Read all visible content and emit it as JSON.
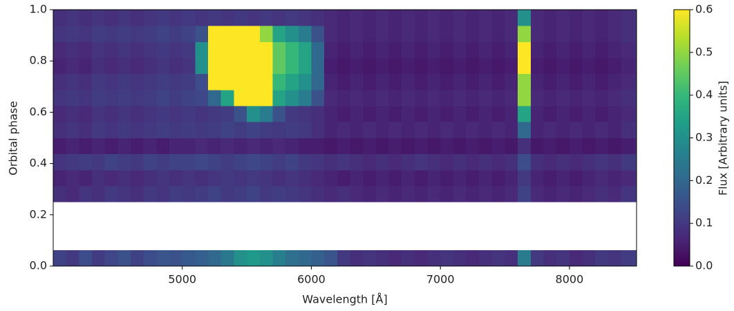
{
  "chart_data": {
    "type": "heatmap",
    "xlabel": "Wavelength [Å]",
    "ylabel": "Orbital phase",
    "colorbar_label": "Flux [Arbitrary units]",
    "xlim": [
      4000,
      8520
    ],
    "ylim": [
      0,
      1
    ],
    "xticks": [
      5000,
      6000,
      7000,
      8000
    ],
    "yticks": [
      {
        "value": 0,
        "label": "0.0"
      },
      {
        "value": 0.2,
        "label": "0.2"
      },
      {
        "value": 0.4,
        "label": "0.4"
      },
      {
        "value": 0.6,
        "label": "0.6"
      },
      {
        "value": 0.8,
        "label": "0.8"
      },
      {
        "value": 1,
        "label": "1.0"
      }
    ],
    "clim": [
      0,
      0.6
    ],
    "cticks": [
      {
        "value": 0,
        "label": "0.0"
      },
      {
        "value": 0.1,
        "label": "0.1"
      },
      {
        "value": 0.2,
        "label": "0.2"
      },
      {
        "value": 0.3,
        "label": "0.3"
      },
      {
        "value": 0.4,
        "label": "0.4"
      },
      {
        "value": 0.5,
        "label": "0.5"
      },
      {
        "value": 0.6,
        "label": "0.6"
      }
    ],
    "colormap": [
      "#440154",
      "#482878",
      "#3e4989",
      "#31688e",
      "#26828e",
      "#1f9e89",
      "#35b779",
      "#6ece58",
      "#b5de2b",
      "#fde725"
    ],
    "x_edges": [
      4000,
      4100,
      4200,
      4300,
      4400,
      4500,
      4600,
      4700,
      4800,
      4900,
      5000,
      5100,
      5200,
      5300,
      5400,
      5500,
      5600,
      5700,
      5800,
      5900,
      6000,
      6100,
      6200,
      6300,
      6400,
      6500,
      6600,
      6700,
      6800,
      6900,
      7000,
      7100,
      7200,
      7300,
      7400,
      7500,
      7600,
      7700,
      7800,
      7900,
      8000,
      8100,
      8200,
      8300,
      8400,
      8500,
      8520
    ],
    "rows": [
      {
        "phase": [
          0,
          0.0625
        ],
        "values": [
          0.12,
          0.1,
          0.14,
          0.11,
          0.13,
          0.15,
          0.12,
          0.14,
          0.16,
          0.15,
          0.17,
          0.18,
          0.2,
          0.24,
          0.3,
          0.32,
          0.3,
          0.26,
          0.22,
          0.2,
          0.18,
          0.16,
          0.1,
          0.08,
          0.09,
          0.08,
          0.07,
          0.08,
          0.07,
          0.08,
          0.09,
          0.08,
          0.07,
          0.08,
          0.09,
          0.08,
          0.25,
          0.1,
          0.08,
          0.09,
          0.07,
          0.08,
          0.1,
          0.09,
          0.11,
          0.12
        ]
      },
      {
        "phase": [
          0.25,
          0.3125
        ],
        "values": [
          0.08,
          0.07,
          0.09,
          0.08,
          0.1,
          0.09,
          0.08,
          0.1,
          0.09,
          0.11,
          0.1,
          0.11,
          0.12,
          0.1,
          0.11,
          0.12,
          0.1,
          0.11,
          0.1,
          0.09,
          0.08,
          0.07,
          0.08,
          0.07,
          0.06,
          0.07,
          0.06,
          0.07,
          0.06,
          0.07,
          0.06,
          0.07,
          0.06,
          0.07,
          0.06,
          0.07,
          0.12,
          0.07,
          0.06,
          0.07,
          0.06,
          0.07,
          0.08,
          0.07,
          0.09,
          0.1
        ]
      },
      {
        "phase": [
          0.3125,
          0.375
        ],
        "values": [
          0.06,
          0.07,
          0.06,
          0.08,
          0.07,
          0.08,
          0.07,
          0.08,
          0.09,
          0.08,
          0.09,
          0.08,
          0.09,
          0.1,
          0.09,
          0.1,
          0.09,
          0.08,
          0.09,
          0.08,
          0.07,
          0.06,
          0.05,
          0.06,
          0.05,
          0.06,
          0.05,
          0.06,
          0.05,
          0.06,
          0.05,
          0.06,
          0.05,
          0.06,
          0.05,
          0.06,
          0.1,
          0.06,
          0.05,
          0.06,
          0.05,
          0.06,
          0.07,
          0.06,
          0.07,
          0.08
        ]
      },
      {
        "phase": [
          0.375,
          0.4375
        ],
        "values": [
          0.09,
          0.1,
          0.11,
          0.1,
          0.12,
          0.11,
          0.1,
          0.12,
          0.11,
          0.12,
          0.12,
          0.13,
          0.12,
          0.11,
          0.12,
          0.13,
          0.12,
          0.11,
          0.12,
          0.1,
          0.09,
          0.08,
          0.09,
          0.08,
          0.07,
          0.08,
          0.07,
          0.08,
          0.09,
          0.08,
          0.07,
          0.08,
          0.07,
          0.08,
          0.07,
          0.08,
          0.14,
          0.08,
          0.07,
          0.08,
          0.07,
          0.08,
          0.09,
          0.08,
          0.1,
          0.11
        ]
      },
      {
        "phase": [
          0.4375,
          0.5
        ],
        "values": [
          0.05,
          0.06,
          0.05,
          0.06,
          0.05,
          0.06,
          0.05,
          0.06,
          0.05,
          0.06,
          0.06,
          0.07,
          0.06,
          0.07,
          0.06,
          0.07,
          0.06,
          0.07,
          0.06,
          0.05,
          0.05,
          0.04,
          0.05,
          0.04,
          0.05,
          0.04,
          0.05,
          0.04,
          0.05,
          0.04,
          0.05,
          0.04,
          0.05,
          0.04,
          0.05,
          0.04,
          0.08,
          0.04,
          0.05,
          0.04,
          0.05,
          0.04,
          0.05,
          0.04,
          0.05,
          0.06
        ]
      },
      {
        "phase": [
          0.5,
          0.5625
        ],
        "values": [
          0.08,
          0.09,
          0.08,
          0.1,
          0.09,
          0.1,
          0.09,
          0.1,
          0.11,
          0.1,
          0.11,
          0.1,
          0.11,
          0.12,
          0.11,
          0.12,
          0.11,
          0.1,
          0.11,
          0.1,
          0.08,
          0.06,
          0.07,
          0.06,
          0.07,
          0.06,
          0.07,
          0.06,
          0.07,
          0.06,
          0.07,
          0.06,
          0.07,
          0.06,
          0.07,
          0.06,
          0.2,
          0.06,
          0.07,
          0.06,
          0.07,
          0.06,
          0.07,
          0.06,
          0.08,
          0.09
        ]
      },
      {
        "phase": [
          0.5625,
          0.625
        ],
        "values": [
          0.07,
          0.08,
          0.07,
          0.09,
          0.08,
          0.09,
          0.08,
          0.09,
          0.1,
          0.09,
          0.1,
          0.09,
          0.1,
          0.11,
          0.15,
          0.3,
          0.25,
          0.15,
          0.1,
          0.09,
          0.08,
          0.06,
          0.05,
          0.06,
          0.05,
          0.06,
          0.05,
          0.06,
          0.05,
          0.06,
          0.05,
          0.06,
          0.05,
          0.06,
          0.05,
          0.06,
          0.35,
          0.06,
          0.05,
          0.06,
          0.05,
          0.06,
          0.05,
          0.06,
          0.07,
          0.08
        ]
      },
      {
        "phase": [
          0.625,
          0.6875
        ],
        "values": [
          0.09,
          0.1,
          0.09,
          0.11,
          0.1,
          0.11,
          0.1,
          0.11,
          0.12,
          0.11,
          0.12,
          0.13,
          0.2,
          0.35,
          0.8,
          0.8,
          0.7,
          0.35,
          0.3,
          0.25,
          0.15,
          0.07,
          0.06,
          0.07,
          0.06,
          0.07,
          0.06,
          0.07,
          0.06,
          0.07,
          0.06,
          0.07,
          0.06,
          0.07,
          0.06,
          0.07,
          0.5,
          0.07,
          0.06,
          0.07,
          0.06,
          0.07,
          0.06,
          0.07,
          0.08,
          0.09
        ]
      },
      {
        "phase": [
          0.6875,
          0.75
        ],
        "values": [
          0.08,
          0.09,
          0.08,
          0.1,
          0.09,
          0.1,
          0.09,
          0.1,
          0.11,
          0.1,
          0.11,
          0.14,
          0.7,
          0.8,
          0.8,
          0.8,
          0.6,
          0.4,
          0.35,
          0.3,
          0.2,
          0.06,
          0.05,
          0.06,
          0.05,
          0.06,
          0.05,
          0.06,
          0.05,
          0.06,
          0.05,
          0.06,
          0.05,
          0.06,
          0.05,
          0.06,
          0.5,
          0.06,
          0.05,
          0.06,
          0.05,
          0.06,
          0.05,
          0.06,
          0.07,
          0.08
        ]
      },
      {
        "phase": [
          0.75,
          0.8125
        ],
        "values": [
          0.06,
          0.07,
          0.06,
          0.08,
          0.07,
          0.08,
          0.07,
          0.08,
          0.09,
          0.08,
          0.09,
          0.3,
          0.8,
          0.8,
          0.8,
          0.8,
          0.8,
          0.45,
          0.4,
          0.35,
          0.2,
          0.05,
          0.04,
          0.05,
          0.04,
          0.05,
          0.04,
          0.05,
          0.04,
          0.05,
          0.04,
          0.05,
          0.04,
          0.05,
          0.04,
          0.05,
          0.6,
          0.05,
          0.04,
          0.05,
          0.04,
          0.05,
          0.04,
          0.05,
          0.06,
          0.07
        ]
      },
      {
        "phase": [
          0.8125,
          0.875
        ],
        "values": [
          0.07,
          0.08,
          0.07,
          0.09,
          0.08,
          0.09,
          0.08,
          0.09,
          0.1,
          0.09,
          0.1,
          0.3,
          0.8,
          0.8,
          0.8,
          0.8,
          0.75,
          0.45,
          0.4,
          0.35,
          0.2,
          0.06,
          0.05,
          0.06,
          0.05,
          0.06,
          0.05,
          0.06,
          0.05,
          0.06,
          0.05,
          0.06,
          0.05,
          0.06,
          0.05,
          0.06,
          0.6,
          0.06,
          0.05,
          0.06,
          0.05,
          0.06,
          0.05,
          0.06,
          0.07,
          0.08
        ]
      },
      {
        "phase": [
          0.875,
          0.9375
        ],
        "values": [
          0.09,
          0.1,
          0.09,
          0.11,
          0.1,
          0.11,
          0.1,
          0.11,
          0.12,
          0.11,
          0.12,
          0.15,
          0.6,
          0.8,
          0.8,
          0.75,
          0.5,
          0.35,
          0.3,
          0.25,
          0.15,
          0.07,
          0.06,
          0.07,
          0.06,
          0.07,
          0.06,
          0.07,
          0.06,
          0.07,
          0.06,
          0.07,
          0.06,
          0.07,
          0.06,
          0.07,
          0.5,
          0.07,
          0.06,
          0.07,
          0.06,
          0.07,
          0.06,
          0.07,
          0.08,
          0.09
        ]
      },
      {
        "phase": [
          0.9375,
          1
        ],
        "values": [
          0.08,
          0.09,
          0.08,
          0.09,
          0.08,
          0.09,
          0.08,
          0.09,
          0.1,
          0.09,
          0.1,
          0.09,
          0.1,
          0.09,
          0.1,
          0.09,
          0.1,
          0.09,
          0.1,
          0.09,
          0.08,
          0.07,
          0.06,
          0.07,
          0.06,
          0.07,
          0.06,
          0.07,
          0.06,
          0.07,
          0.06,
          0.07,
          0.06,
          0.07,
          0.06,
          0.07,
          0.3,
          0.07,
          0.06,
          0.07,
          0.06,
          0.07,
          0.06,
          0.07,
          0.08,
          0.09
        ]
      }
    ]
  }
}
